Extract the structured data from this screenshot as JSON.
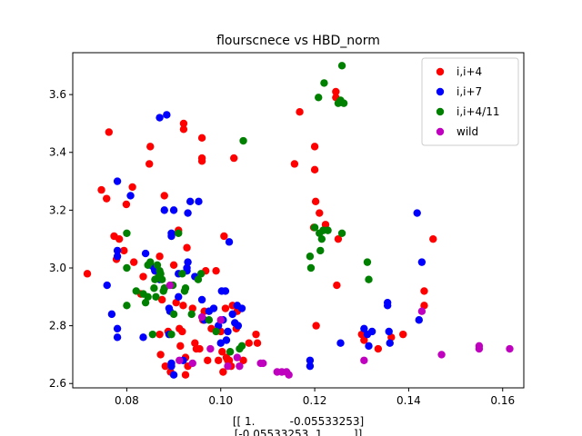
{
  "chart_data": {
    "type": "scatter",
    "title": "flourscnece vs HBD_norm",
    "xlabel_lines": [
      "[[ 1.          -0.05533253]",
      "[-0.05533253  1.        ]]"
    ],
    "ylabel": "",
    "xlim": [
      0.0685,
      0.1645
    ],
    "ylim": [
      2.585,
      3.745
    ],
    "x_ticks": [
      0.08,
      0.1,
      0.12,
      0.14,
      0.16
    ],
    "x_tick_labels": [
      "0.08",
      "0.10",
      "0.12",
      "0.14",
      "0.16"
    ],
    "y_ticks": [
      2.6,
      2.8,
      3.0,
      3.2,
      3.4,
      3.6
    ],
    "y_tick_labels": [
      "2.6",
      "2.8",
      "3.0",
      "3.2",
      "3.4",
      "3.6"
    ],
    "grid": false,
    "legend_position": "top-right",
    "series": [
      {
        "name": "i,i+4",
        "color": "#ff0000",
        "points": [
          [
            0.0716,
            2.98
          ],
          [
            0.0746,
            3.27
          ],
          [
            0.0757,
            3.24
          ],
          [
            0.0762,
            3.47
          ],
          [
            0.0773,
            3.11
          ],
          [
            0.0778,
            3.03
          ],
          [
            0.0784,
            3.1
          ],
          [
            0.0794,
            3.06
          ],
          [
            0.0799,
            3.22
          ],
          [
            0.0812,
            3.28
          ],
          [
            0.0815,
            3.02
          ],
          [
            0.083,
            2.91
          ],
          [
            0.0835,
            2.97
          ],
          [
            0.0848,
            3.36
          ],
          [
            0.085,
            3.42
          ],
          [
            0.086,
            2.99
          ],
          [
            0.087,
            3.04
          ],
          [
            0.0875,
            2.89
          ],
          [
            0.087,
            2.77
          ],
          [
            0.0872,
            2.7
          ],
          [
            0.088,
            3.25
          ],
          [
            0.0882,
            2.66
          ],
          [
            0.0888,
            2.78
          ],
          [
            0.0893,
            2.64
          ],
          [
            0.09,
            3.01
          ],
          [
            0.0905,
            2.88
          ],
          [
            0.091,
            3.13
          ],
          [
            0.0912,
            2.79
          ],
          [
            0.0914,
            2.73
          ],
          [
            0.0918,
            2.78
          ],
          [
            0.0921,
            3.48
          ],
          [
            0.0921,
            3.5
          ],
          [
            0.092,
            2.87
          ],
          [
            0.0925,
            2.69
          ],
          [
            0.0925,
            2.63
          ],
          [
            0.093,
            2.66
          ],
          [
            0.0928,
            3.07
          ],
          [
            0.094,
            2.86
          ],
          [
            0.0945,
            2.74
          ],
          [
            0.0948,
            2.72
          ],
          [
            0.0955,
            2.72
          ],
          [
            0.096,
            3.45
          ],
          [
            0.096,
            3.37
          ],
          [
            0.096,
            3.38
          ],
          [
            0.0962,
            2.82
          ],
          [
            0.0965,
            2.85
          ],
          [
            0.0968,
            2.99
          ],
          [
            0.0972,
            2.68
          ],
          [
            0.098,
            2.79
          ],
          [
            0.099,
            2.99
          ],
          [
            0.0995,
            2.68
          ],
          [
            0.1,
            2.78
          ],
          [
            0.1003,
            2.71
          ],
          [
            0.1005,
            2.64
          ],
          [
            0.1007,
            3.11
          ],
          [
            0.101,
            2.86
          ],
          [
            0.1012,
            2.69
          ],
          [
            0.1015,
            2.68
          ],
          [
            0.1018,
            2.68
          ],
          [
            0.1022,
            2.66
          ],
          [
            0.1025,
            2.87
          ],
          [
            0.1028,
            3.38
          ],
          [
            0.1035,
            2.85
          ],
          [
            0.1033,
            2.79
          ],
          [
            0.1048,
            2.68
          ],
          [
            0.106,
            2.74
          ],
          [
            0.1075,
            2.77
          ],
          [
            0.1078,
            2.74
          ],
          [
            0.1157,
            3.36
          ],
          [
            0.1168,
            3.54
          ],
          [
            0.1198,
            3.14
          ],
          [
            0.12,
            3.42
          ],
          [
            0.12,
            3.34
          ],
          [
            0.1202,
            3.23
          ],
          [
            0.1203,
            2.8
          ],
          [
            0.121,
            3.19
          ],
          [
            0.1223,
            3.15
          ],
          [
            0.1245,
            3.61
          ],
          [
            0.1245,
            3.59
          ],
          [
            0.125,
            3.1
          ],
          [
            0.1247,
            2.94
          ],
          [
            0.13,
            2.77
          ],
          [
            0.1305,
            2.75
          ],
          [
            0.1335,
            2.72
          ],
          [
            0.1363,
            2.76
          ],
          [
            0.1388,
            2.77
          ],
          [
            0.1433,
            2.92
          ],
          [
            0.1433,
            2.87
          ],
          [
            0.1452,
            3.1
          ]
        ]
      },
      {
        "name": "i,i+7",
        "color": "#0000ff",
        "points": [
          [
            0.0758,
            2.94
          ],
          [
            0.0768,
            2.84
          ],
          [
            0.078,
            3.3
          ],
          [
            0.078,
            3.06
          ],
          [
            0.078,
            3.04
          ],
          [
            0.078,
            2.79
          ],
          [
            0.078,
            2.76
          ],
          [
            0.0808,
            3.25
          ],
          [
            0.0835,
            2.76
          ],
          [
            0.084,
            3.05
          ],
          [
            0.085,
            3.01
          ],
          [
            0.0858,
            3.0
          ],
          [
            0.086,
            2.99
          ],
          [
            0.087,
            3.52
          ],
          [
            0.087,
            2.96
          ],
          [
            0.088,
            3.2
          ],
          [
            0.0885,
            3.53
          ],
          [
            0.089,
            2.86
          ],
          [
            0.089,
            2.77
          ],
          [
            0.0892,
            2.85
          ],
          [
            0.0895,
            3.12
          ],
          [
            0.0895,
            3.11
          ],
          [
            0.0895,
            2.67
          ],
          [
            0.0895,
            2.66
          ],
          [
            0.09,
            3.2
          ],
          [
            0.09,
            2.63
          ],
          [
            0.091,
            2.98
          ],
          [
            0.091,
            2.9
          ],
          [
            0.092,
            2.68
          ],
          [
            0.0928,
            3.0
          ],
          [
            0.0928,
            2.99
          ],
          [
            0.093,
            3.19
          ],
          [
            0.093,
            3.02
          ],
          [
            0.0935,
            3.23
          ],
          [
            0.0945,
            2.97
          ],
          [
            0.0953,
            3.23
          ],
          [
            0.096,
            2.89
          ],
          [
            0.0965,
            2.82
          ],
          [
            0.0975,
            2.85
          ],
          [
            0.0985,
            2.86
          ],
          [
            0.0995,
            2.8
          ],
          [
            0.1,
            2.74
          ],
          [
            0.1002,
            2.92
          ],
          [
            0.1005,
            2.82
          ],
          [
            0.101,
            2.92
          ],
          [
            0.1012,
            2.75
          ],
          [
            0.1015,
            2.78
          ],
          [
            0.1018,
            3.09
          ],
          [
            0.1025,
            2.84
          ],
          [
            0.103,
            2.81
          ],
          [
            0.1035,
            2.87
          ],
          [
            0.1037,
            2.8
          ],
          [
            0.1045,
            2.86
          ],
          [
            0.119,
            2.68
          ],
          [
            0.119,
            2.66
          ],
          [
            0.1255,
            2.74
          ],
          [
            0.1305,
            2.79
          ],
          [
            0.1312,
            2.77
          ],
          [
            0.1315,
            2.73
          ],
          [
            0.1322,
            2.78
          ],
          [
            0.1355,
            2.88
          ],
          [
            0.1355,
            2.87
          ],
          [
            0.1358,
            2.78
          ],
          [
            0.136,
            2.74
          ],
          [
            0.1418,
            3.19
          ],
          [
            0.1422,
            2.82
          ],
          [
            0.1428,
            3.02
          ]
        ]
      },
      {
        "name": "i,i+4/11",
        "color": "#008000",
        "points": [
          [
            0.08,
            3.12
          ],
          [
            0.08,
            3.0
          ],
          [
            0.08,
            2.87
          ],
          [
            0.082,
            2.92
          ],
          [
            0.0835,
            2.91
          ],
          [
            0.084,
            2.88
          ],
          [
            0.0845,
            3.01
          ],
          [
            0.0845,
            2.9
          ],
          [
            0.085,
            3.02
          ],
          [
            0.0855,
            2.77
          ],
          [
            0.0858,
            2.93
          ],
          [
            0.086,
            2.96
          ],
          [
            0.0862,
            2.9
          ],
          [
            0.0865,
            3.01
          ],
          [
            0.0868,
            2.97
          ],
          [
            0.087,
            2.99
          ],
          [
            0.0872,
            2.98
          ],
          [
            0.0875,
            2.96
          ],
          [
            0.0878,
            2.92
          ],
          [
            0.088,
            2.93
          ],
          [
            0.0895,
            2.77
          ],
          [
            0.0898,
            2.94
          ],
          [
            0.09,
            2.84
          ],
          [
            0.091,
            3.12
          ],
          [
            0.0918,
            2.98
          ],
          [
            0.0923,
            2.92
          ],
          [
            0.0925,
            2.93
          ],
          [
            0.0938,
            2.84
          ],
          [
            0.0952,
            2.96
          ],
          [
            0.0958,
            2.98
          ],
          [
            0.0975,
            2.82
          ],
          [
            0.099,
            2.78
          ],
          [
            0.102,
            2.71
          ],
          [
            0.104,
            2.72
          ],
          [
            0.1045,
            2.73
          ],
          [
            0.1048,
            3.44
          ],
          [
            0.119,
            3.04
          ],
          [
            0.1192,
            3.0
          ],
          [
            0.12,
            3.14
          ],
          [
            0.1208,
            3.59
          ],
          [
            0.121,
            3.12
          ],
          [
            0.1212,
            3.06
          ],
          [
            0.1215,
            3.1
          ],
          [
            0.1218,
            3.13
          ],
          [
            0.122,
            3.64
          ],
          [
            0.1228,
            3.13
          ],
          [
            0.125,
            3.57
          ],
          [
            0.1255,
            3.58
          ],
          [
            0.1258,
            3.12
          ],
          [
            0.1262,
            3.57
          ],
          [
            0.1258,
            3.7
          ],
          [
            0.1312,
            3.02
          ],
          [
            0.1315,
            2.96
          ]
        ]
      },
      {
        "name": "wild",
        "color": "#bf00bf",
        "points": [
          [
            0.0892,
            2.94
          ],
          [
            0.0912,
            2.68
          ],
          [
            0.094,
            2.67
          ],
          [
            0.096,
            2.83
          ],
          [
            0.0978,
            2.72
          ],
          [
            0.1,
            2.82
          ],
          [
            0.1015,
            2.66
          ],
          [
            0.1035,
            2.69
          ],
          [
            0.104,
            2.66
          ],
          [
            0.1085,
            2.67
          ],
          [
            0.109,
            2.67
          ],
          [
            0.112,
            2.64
          ],
          [
            0.113,
            2.64
          ],
          [
            0.114,
            2.64
          ],
          [
            0.1145,
            2.63
          ],
          [
            0.1305,
            2.68
          ],
          [
            0.1428,
            2.85
          ],
          [
            0.147,
            2.7
          ],
          [
            0.155,
            2.73
          ],
          [
            0.155,
            2.72
          ],
          [
            0.1615,
            2.72
          ]
        ]
      }
    ]
  }
}
